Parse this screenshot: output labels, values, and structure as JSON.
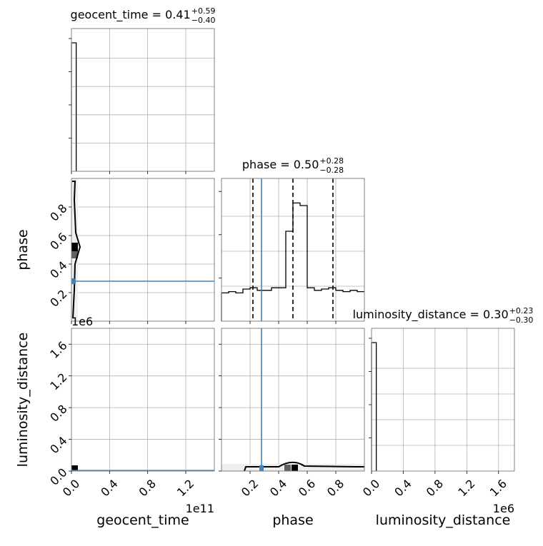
{
  "chart_data": {
    "type": "corner",
    "parameters": [
      "geocent_time",
      "phase",
      "luminosity_distance"
    ],
    "axis_labels": {
      "geocent_time": "geocent_time",
      "phase": "phase",
      "luminosity_distance": "luminosity_distance"
    },
    "titles": [
      {
        "name": "geocent_time = 0.41",
        "median": 0.41,
        "plus": "+0.59",
        "minus": "−0.40"
      },
      {
        "name": "phase = 0.50",
        "median": 0.5,
        "plus": "+0.28",
        "minus": "−0.28"
      },
      {
        "name": "luminosity_distance = 0.30",
        "median": 0.3,
        "plus": "+0.23",
        "minus": "−0.30"
      }
    ],
    "ranges": {
      "geocent_time": [
        0,
        150000000000
      ],
      "phase": [
        0,
        1
      ],
      "luminosity_distance": [
        0,
        1800000
      ]
    },
    "offsets": {
      "geocent_time": "1e11",
      "luminosity_distance": "1e6"
    },
    "ticks": {
      "geocent_time": {
        "values": [
          0,
          40000000000,
          80000000000,
          120000000000
        ],
        "labels": [
          "0.0",
          "0.4",
          "0.8",
          "1.2"
        ]
      },
      "phase_x": {
        "values": [
          0.2,
          0.4,
          0.6,
          0.8
        ],
        "labels": [
          "0.2",
          "0.4",
          "0.6",
          "0.8"
        ]
      },
      "phase_y": {
        "values": [
          0.2,
          0.4,
          0.6,
          0.8
        ],
        "labels": [
          "0.2",
          "0.4",
          "0.6",
          "0.8"
        ]
      },
      "luminosity_distance": {
        "values": [
          0,
          400000,
          800000,
          1200000,
          1600000
        ],
        "labels": [
          "0.0",
          "0.4",
          "0.8",
          "1.2",
          "1.6"
        ]
      }
    },
    "truths": {
      "phase": 0.28
    },
    "quantiles": {
      "phase": [
        0.22,
        0.5,
        0.78
      ]
    },
    "histograms": {
      "geocent_time": {
        "edges": [
          0,
          5000000000
        ],
        "heights": [
          1.0
        ]
      },
      "phase": {
        "edges": [
          0,
          0.05,
          0.1,
          0.15,
          0.2,
          0.25,
          0.3,
          0.35,
          0.4,
          0.45,
          0.5,
          0.55,
          0.6,
          0.65,
          0.7,
          0.75,
          0.8,
          0.85,
          0.9,
          0.95,
          1.0
        ],
        "heights": [
          0.22,
          0.23,
          0.22,
          0.25,
          0.26,
          0.24,
          0.24,
          0.26,
          0.26,
          0.7,
          0.92,
          0.9,
          0.26,
          0.24,
          0.25,
          0.26,
          0.24,
          0.23,
          0.24,
          0.23
        ]
      },
      "luminosity_distance": {
        "edges": [
          0,
          60000
        ],
        "heights": [
          1.0
        ]
      }
    },
    "grid": true
  }
}
